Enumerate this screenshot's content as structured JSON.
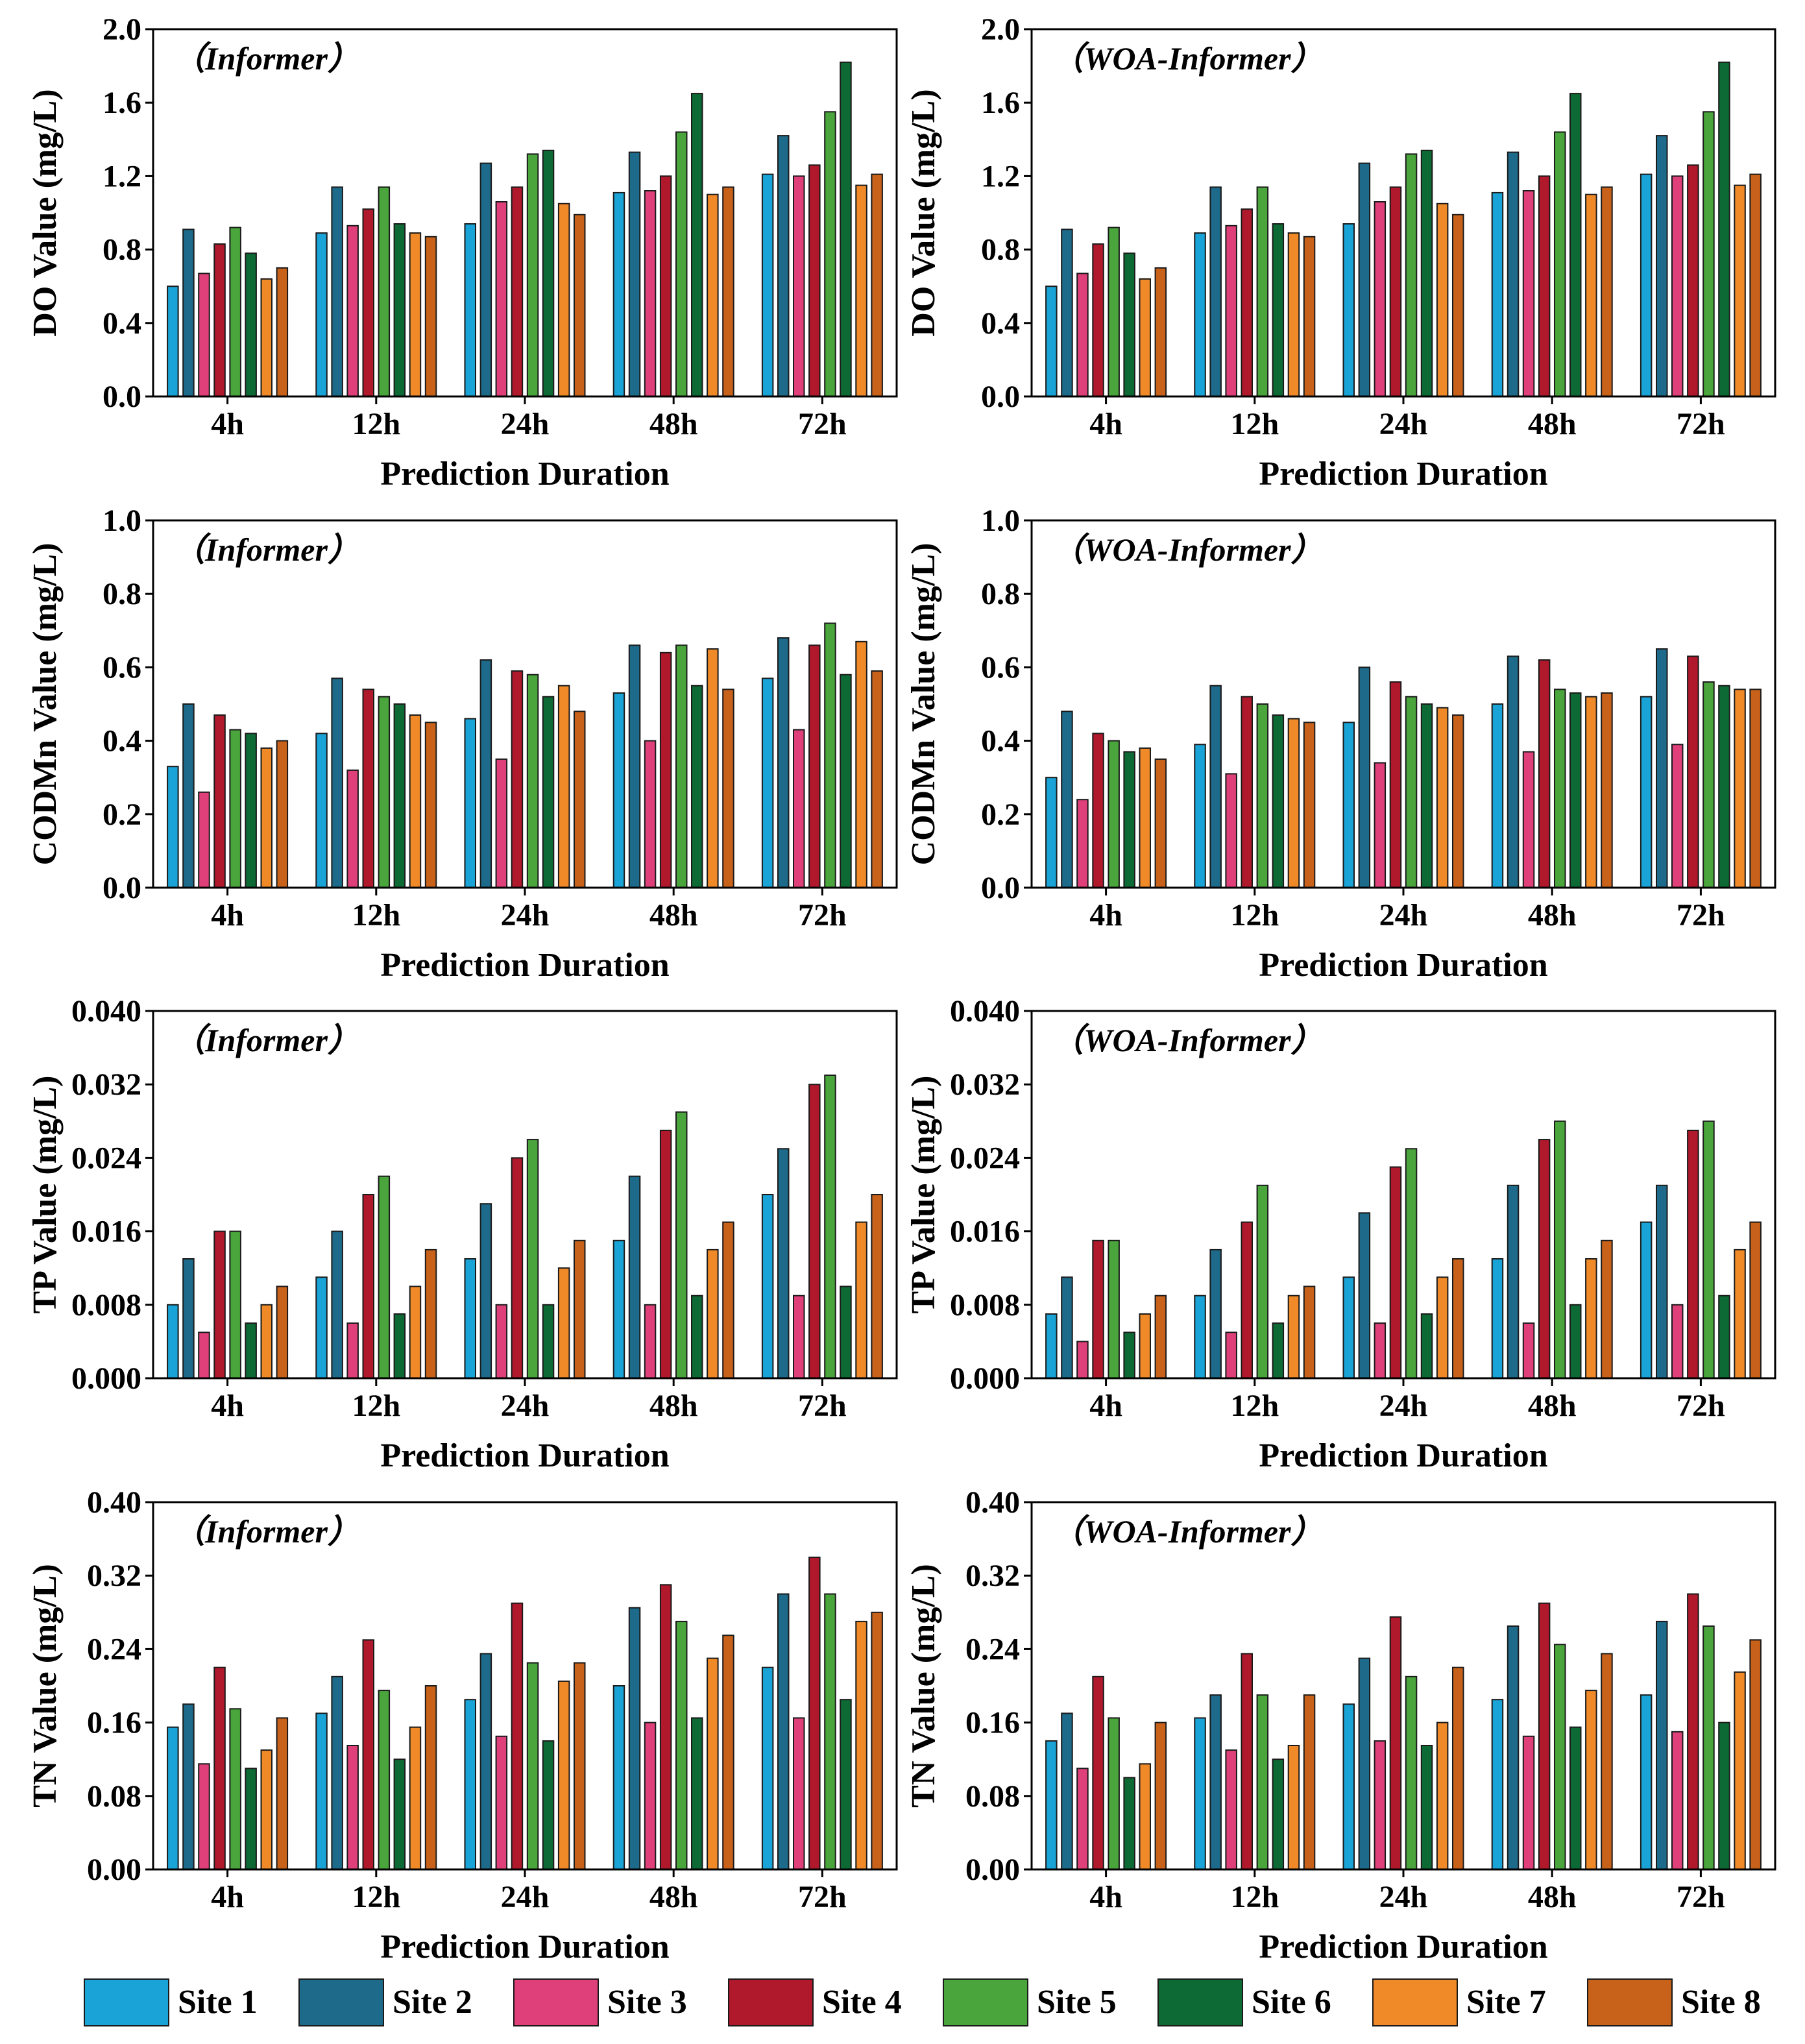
{
  "colors": {
    "series": [
      "#1aa3d6",
      "#1e6a8a",
      "#e0407a",
      "#b0182c",
      "#4aa63c",
      "#0e6a34",
      "#f08a28",
      "#c8621a"
    ]
  },
  "legend": [
    "Site 1",
    "Site 2",
    "Site 3",
    "Site 4",
    "Site 5",
    "Site 6",
    "Site 7",
    "Site 8"
  ],
  "chart_data": [
    {
      "type": "bar",
      "title": "（Informer）",
      "xlabel": "Prediction Duration",
      "ylabel": "DO Value (mg/L)",
      "categories": [
        "4h",
        "12h",
        "24h",
        "48h",
        "72h"
      ],
      "ylim": [
        0,
        2.0
      ],
      "yticks": [
        "0.0",
        "0.4",
        "0.8",
        "1.2",
        "1.6",
        "2.0"
      ],
      "series": [
        {
          "name": "Site 1",
          "values": [
            0.6,
            0.89,
            0.94,
            1.11,
            1.21
          ]
        },
        {
          "name": "Site 2",
          "values": [
            0.91,
            1.14,
            1.27,
            1.33,
            1.42
          ]
        },
        {
          "name": "Site 3",
          "values": [
            0.67,
            0.93,
            1.06,
            1.12,
            1.2
          ]
        },
        {
          "name": "Site 4",
          "values": [
            0.83,
            1.02,
            1.14,
            1.2,
            1.26
          ]
        },
        {
          "name": "Site 5",
          "values": [
            0.92,
            1.14,
            1.32,
            1.44,
            1.55
          ]
        },
        {
          "name": "Site 6",
          "values": [
            0.78,
            0.94,
            1.34,
            1.65,
            1.82
          ]
        },
        {
          "name": "Site 7",
          "values": [
            0.64,
            0.89,
            1.05,
            1.1,
            1.15
          ]
        },
        {
          "name": "Site 8",
          "values": [
            0.7,
            0.87,
            0.99,
            1.14,
            1.21
          ]
        }
      ]
    },
    {
      "type": "bar",
      "title": "（WOA-Informer）",
      "xlabel": "Prediction Duration",
      "ylabel": "DO Value (mg/L)",
      "categories": [
        "4h",
        "12h",
        "24h",
        "48h",
        "72h"
      ],
      "ylim": [
        0,
        2.0
      ],
      "yticks": [
        "0.0",
        "0.4",
        "0.8",
        "1.2",
        "1.6",
        "2.0"
      ],
      "series": [
        {
          "name": "Site 1",
          "values": [
            0.6,
            0.89,
            0.94,
            1.11,
            1.21
          ]
        },
        {
          "name": "Site 2",
          "values": [
            0.91,
            1.14,
            1.27,
            1.33,
            1.42
          ]
        },
        {
          "name": "Site 3",
          "values": [
            0.67,
            0.93,
            1.06,
            1.12,
            1.2
          ]
        },
        {
          "name": "Site 4",
          "values": [
            0.83,
            1.02,
            1.14,
            1.2,
            1.26
          ]
        },
        {
          "name": "Site 5",
          "values": [
            0.92,
            1.14,
            1.32,
            1.44,
            1.55
          ]
        },
        {
          "name": "Site 6",
          "values": [
            0.78,
            0.94,
            1.34,
            1.65,
            1.82
          ]
        },
        {
          "name": "Site 7",
          "values": [
            0.64,
            0.89,
            1.05,
            1.1,
            1.15
          ]
        },
        {
          "name": "Site 8",
          "values": [
            0.7,
            0.87,
            0.99,
            1.14,
            1.21
          ]
        }
      ]
    },
    {
      "type": "bar",
      "title": "（Informer）",
      "xlabel": "Prediction Duration",
      "ylabel": "CODMn Value (mg/L)",
      "categories": [
        "4h",
        "12h",
        "24h",
        "48h",
        "72h"
      ],
      "ylim": [
        0,
        1.0
      ],
      "yticks": [
        "0.0",
        "0.2",
        "0.4",
        "0.6",
        "0.8",
        "1.0"
      ],
      "series": [
        {
          "name": "Site 1",
          "values": [
            0.33,
            0.42,
            0.46,
            0.53,
            0.57
          ]
        },
        {
          "name": "Site 2",
          "values": [
            0.5,
            0.57,
            0.62,
            0.66,
            0.68
          ]
        },
        {
          "name": "Site 3",
          "values": [
            0.26,
            0.32,
            0.35,
            0.4,
            0.43
          ]
        },
        {
          "name": "Site 4",
          "values": [
            0.47,
            0.54,
            0.59,
            0.64,
            0.66
          ]
        },
        {
          "name": "Site 5",
          "values": [
            0.43,
            0.52,
            0.58,
            0.66,
            0.72
          ]
        },
        {
          "name": "Site 6",
          "values": [
            0.42,
            0.5,
            0.52,
            0.55,
            0.58
          ]
        },
        {
          "name": "Site 7",
          "values": [
            0.38,
            0.47,
            0.55,
            0.65,
            0.67
          ]
        },
        {
          "name": "Site 8",
          "values": [
            0.4,
            0.45,
            0.48,
            0.54,
            0.59
          ]
        }
      ]
    },
    {
      "type": "bar",
      "title": "（WOA-Informer）",
      "xlabel": "Prediction Duration",
      "ylabel": "CODMn Value (mg/L)",
      "categories": [
        "4h",
        "12h",
        "24h",
        "48h",
        "72h"
      ],
      "ylim": [
        0,
        1.0
      ],
      "yticks": [
        "0.0",
        "0.2",
        "0.4",
        "0.6",
        "0.8",
        "1.0"
      ],
      "series": [
        {
          "name": "Site 1",
          "values": [
            0.3,
            0.39,
            0.45,
            0.5,
            0.52
          ]
        },
        {
          "name": "Site 2",
          "values": [
            0.48,
            0.55,
            0.6,
            0.63,
            0.65
          ]
        },
        {
          "name": "Site 3",
          "values": [
            0.24,
            0.31,
            0.34,
            0.37,
            0.39
          ]
        },
        {
          "name": "Site 4",
          "values": [
            0.42,
            0.52,
            0.56,
            0.62,
            0.63
          ]
        },
        {
          "name": "Site 5",
          "values": [
            0.4,
            0.5,
            0.52,
            0.54,
            0.56
          ]
        },
        {
          "name": "Site 6",
          "values": [
            0.37,
            0.47,
            0.5,
            0.53,
            0.55
          ]
        },
        {
          "name": "Site 7",
          "values": [
            0.38,
            0.46,
            0.49,
            0.52,
            0.54
          ]
        },
        {
          "name": "Site 8",
          "values": [
            0.35,
            0.45,
            0.47,
            0.53,
            0.54
          ]
        }
      ]
    },
    {
      "type": "bar",
      "title": "（Informer）",
      "xlabel": "Prediction Duration",
      "ylabel": "TP Value (mg/L)",
      "categories": [
        "4h",
        "12h",
        "24h",
        "48h",
        "72h"
      ],
      "ylim": [
        0,
        0.04
      ],
      "yticks": [
        "0.000",
        "0.008",
        "0.016",
        "0.024",
        "0.032",
        "0.040"
      ],
      "series": [
        {
          "name": "Site 1",
          "values": [
            0.008,
            0.011,
            0.013,
            0.015,
            0.02
          ]
        },
        {
          "name": "Site 2",
          "values": [
            0.013,
            0.016,
            0.019,
            0.022,
            0.025
          ]
        },
        {
          "name": "Site 3",
          "values": [
            0.005,
            0.006,
            0.008,
            0.008,
            0.009
          ]
        },
        {
          "name": "Site 4",
          "values": [
            0.016,
            0.02,
            0.024,
            0.027,
            0.032
          ]
        },
        {
          "name": "Site 5",
          "values": [
            0.016,
            0.022,
            0.026,
            0.029,
            0.033
          ]
        },
        {
          "name": "Site 6",
          "values": [
            0.006,
            0.007,
            0.008,
            0.009,
            0.01
          ]
        },
        {
          "name": "Site 7",
          "values": [
            0.008,
            0.01,
            0.012,
            0.014,
            0.017
          ]
        },
        {
          "name": "Site 8",
          "values": [
            0.01,
            0.014,
            0.015,
            0.017,
            0.02
          ]
        }
      ]
    },
    {
      "type": "bar",
      "title": "（WOA-Informer）",
      "xlabel": "Prediction Duration",
      "ylabel": "TP Value (mg/L)",
      "categories": [
        "4h",
        "12h",
        "24h",
        "48h",
        "72h"
      ],
      "ylim": [
        0,
        0.04
      ],
      "yticks": [
        "0.000",
        "0.008",
        "0.016",
        "0.024",
        "0.032",
        "0.040"
      ],
      "series": [
        {
          "name": "Site 1",
          "values": [
            0.007,
            0.009,
            0.011,
            0.013,
            0.017
          ]
        },
        {
          "name": "Site 2",
          "values": [
            0.011,
            0.014,
            0.018,
            0.021,
            0.021
          ]
        },
        {
          "name": "Site 3",
          "values": [
            0.004,
            0.005,
            0.006,
            0.006,
            0.008
          ]
        },
        {
          "name": "Site 4",
          "values": [
            0.015,
            0.017,
            0.023,
            0.026,
            0.027
          ]
        },
        {
          "name": "Site 5",
          "values": [
            0.015,
            0.021,
            0.025,
            0.028,
            0.028
          ]
        },
        {
          "name": "Site 6",
          "values": [
            0.005,
            0.006,
            0.007,
            0.008,
            0.009
          ]
        },
        {
          "name": "Site 7",
          "values": [
            0.007,
            0.009,
            0.011,
            0.013,
            0.014
          ]
        },
        {
          "name": "Site 8",
          "values": [
            0.009,
            0.01,
            0.013,
            0.015,
            0.017
          ]
        }
      ]
    },
    {
      "type": "bar",
      "title": "（Informer）",
      "xlabel": "Prediction Duration",
      "ylabel": "TN Value (mg/L)",
      "categories": [
        "4h",
        "12h",
        "24h",
        "48h",
        "72h"
      ],
      "ylim": [
        0,
        0.4
      ],
      "yticks": [
        "0.00",
        "0.08",
        "0.16",
        "0.24",
        "0.32",
        "0.40"
      ],
      "series": [
        {
          "name": "Site 1",
          "values": [
            0.155,
            0.17,
            0.185,
            0.2,
            0.22
          ]
        },
        {
          "name": "Site 2",
          "values": [
            0.18,
            0.21,
            0.235,
            0.285,
            0.3
          ]
        },
        {
          "name": "Site 3",
          "values": [
            0.115,
            0.135,
            0.145,
            0.16,
            0.165
          ]
        },
        {
          "name": "Site 4",
          "values": [
            0.22,
            0.25,
            0.29,
            0.31,
            0.34
          ]
        },
        {
          "name": "Site 5",
          "values": [
            0.175,
            0.195,
            0.225,
            0.27,
            0.3
          ]
        },
        {
          "name": "Site 6",
          "values": [
            0.11,
            0.12,
            0.14,
            0.165,
            0.185
          ]
        },
        {
          "name": "Site 7",
          "values": [
            0.13,
            0.155,
            0.205,
            0.23,
            0.27
          ]
        },
        {
          "name": "Site 8",
          "values": [
            0.165,
            0.2,
            0.225,
            0.255,
            0.28
          ]
        }
      ]
    },
    {
      "type": "bar",
      "title": "（WOA-Informer）",
      "xlabel": "Prediction Duration",
      "ylabel": "TN Value (mg/L)",
      "categories": [
        "4h",
        "12h",
        "24h",
        "48h",
        "72h"
      ],
      "ylim": [
        0,
        0.4
      ],
      "yticks": [
        "0.00",
        "0.08",
        "0.16",
        "0.24",
        "0.32",
        "0.40"
      ],
      "series": [
        {
          "name": "Site 1",
          "values": [
            0.14,
            0.165,
            0.18,
            0.185,
            0.19
          ]
        },
        {
          "name": "Site 2",
          "values": [
            0.17,
            0.19,
            0.23,
            0.265,
            0.27
          ]
        },
        {
          "name": "Site 3",
          "values": [
            0.11,
            0.13,
            0.14,
            0.145,
            0.15
          ]
        },
        {
          "name": "Site 4",
          "values": [
            0.21,
            0.235,
            0.275,
            0.29,
            0.3
          ]
        },
        {
          "name": "Site 5",
          "values": [
            0.165,
            0.19,
            0.21,
            0.245,
            0.265
          ]
        },
        {
          "name": "Site 6",
          "values": [
            0.1,
            0.12,
            0.135,
            0.155,
            0.16
          ]
        },
        {
          "name": "Site 7",
          "values": [
            0.115,
            0.135,
            0.16,
            0.195,
            0.215
          ]
        },
        {
          "name": "Site 8",
          "values": [
            0.16,
            0.19,
            0.22,
            0.235,
            0.25
          ]
        }
      ]
    }
  ]
}
